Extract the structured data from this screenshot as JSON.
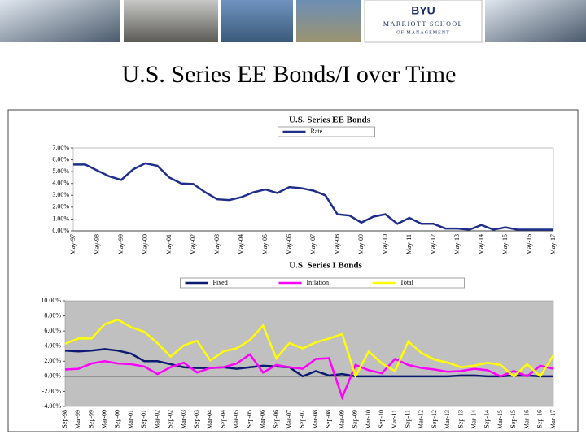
{
  "header": {
    "logo": "BYU",
    "school": "MARRIOTT SCHOOL",
    "sub": "OF MANAGEMENT"
  },
  "slide_title": "U.S. Series EE Bonds/I over Time",
  "chart_data": [
    {
      "type": "line",
      "title": "U.S. Series EE Bonds",
      "legend": "top",
      "grid": false,
      "background": "#ffffff",
      "categories": [
        "May-97",
        null,
        "May-98",
        null,
        "May-99",
        null,
        "May-00",
        null,
        "May-01",
        null,
        "May-02",
        null,
        "May-03",
        null,
        "May-04",
        null,
        "May-05",
        null,
        "May-06",
        null,
        "May-07",
        null,
        "May-08",
        null,
        "May-09",
        null,
        "May-10",
        null,
        "May-11",
        null,
        "May-12",
        null,
        "May-13",
        null,
        "May-14",
        null,
        "May-15",
        null,
        "May-16",
        null,
        "May-17"
      ],
      "series": [
        {
          "name": "Rate",
          "color": "#1f2e8a",
          "values": [
            5.6,
            5.6,
            5.1,
            4.6,
            4.3,
            5.2,
            5.7,
            5.5,
            4.5,
            4.0,
            3.96,
            3.25,
            2.66,
            2.6,
            2.84,
            3.25,
            3.5,
            3.2,
            3.7,
            3.6,
            3.4,
            3.0,
            1.4,
            1.3,
            0.7,
            1.2,
            1.4,
            0.6,
            1.1,
            0.6,
            0.6,
            0.2,
            0.2,
            0.1,
            0.5,
            0.1,
            0.3,
            0.1,
            0.1,
            0.1,
            0.1
          ]
        }
      ],
      "ylim": [
        0,
        7
      ],
      "yticks": [
        {
          "value": 0,
          "label": "0.00%"
        },
        {
          "value": 1,
          "label": "1.00%"
        },
        {
          "value": 2,
          "label": "2.00%"
        },
        {
          "value": 3,
          "label": "3.00%"
        },
        {
          "value": 4,
          "label": "4.00%"
        },
        {
          "value": 5,
          "label": "5.00%"
        },
        {
          "value": 6,
          "label": "6.00%"
        },
        {
          "value": 7,
          "label": "7.00%"
        }
      ]
    },
    {
      "type": "line",
      "title": "U.S. Series I Bonds",
      "legend": "top",
      "grid": false,
      "background": "#c0c0c0",
      "categories": [
        "Sep-98",
        "Mar-99",
        "Sep-99",
        "Mar-00",
        "Sep-00",
        "Mar-01",
        "Sep-01",
        "Mar-02",
        "Sep-02",
        "Mar-03",
        "Sep-03",
        "Mar-04",
        "Sep-04",
        "Mar-05",
        "Sep-05",
        "Mar-06",
        "Sep-06",
        "Mar-07",
        "Sep-07",
        "Mar-08",
        "Sep-08",
        "Mar-09",
        "Sep-09",
        "Mar-10",
        "Sep-10",
        "Mar-11",
        "Sep-11",
        "Mar-12",
        "Sep-12",
        "Mar-13",
        "Sep-13",
        "Mar-14",
        "Sep-14",
        "Mar-15",
        "Sep-15",
        "Mar-16",
        "Sep-16",
        "Mar-17"
      ],
      "series": [
        {
          "name": "Fixed",
          "color": "#0a1a70",
          "values": [
            3.4,
            3.3,
            3.4,
            3.6,
            3.4,
            3.0,
            2.0,
            2.0,
            1.6,
            1.2,
            1.1,
            1.1,
            1.2,
            1.0,
            1.2,
            1.4,
            1.3,
            1.2,
            0.0,
            0.7,
            0.1,
            0.3,
            0,
            0,
            0,
            0,
            0,
            0,
            0,
            0,
            0.1,
            0.1,
            0,
            0,
            0.1,
            0.1,
            0,
            0
          ]
        },
        {
          "name": "Inflation",
          "color": "#ff00ff",
          "values": [
            0.9,
            1.0,
            1.7,
            2.0,
            1.7,
            1.6,
            1.3,
            0.3,
            1.2,
            1.8,
            0.5,
            1.1,
            1.2,
            1.7,
            2.9,
            0.5,
            1.5,
            1.2,
            1.0,
            2.3,
            2.4,
            -2.8,
            1.5,
            0.8,
            0.4,
            2.3,
            1.5,
            1.1,
            0.9,
            0.6,
            0.7,
            1.0,
            0.8,
            0.0,
            0.7,
            0.0,
            1.4,
            1.0
          ]
        },
        {
          "name": "Total",
          "color": "#ffff00",
          "values": [
            4.3,
            5.0,
            5.0,
            6.9,
            7.5,
            6.5,
            5.9,
            4.4,
            2.6,
            4.1,
            4.7,
            2.1,
            3.3,
            3.7,
            4.8,
            6.7,
            2.4,
            4.4,
            3.7,
            4.5,
            5.0,
            5.6,
            0.0,
            3.3,
            1.7,
            0.7,
            4.6,
            3.1,
            2.2,
            1.8,
            1.2,
            1.4,
            1.8,
            1.5,
            0.0,
            1.6,
            0.0,
            2.8
          ]
        }
      ],
      "ylim": [
        -4,
        10
      ],
      "yticks": [
        {
          "value": -4,
          "label": "-4.00%"
        },
        {
          "value": -2,
          "label": "-2.00%"
        },
        {
          "value": 0,
          "label": "0.00%"
        },
        {
          "value": 2,
          "label": "2.00%"
        },
        {
          "value": 4,
          "label": "4.00%"
        },
        {
          "value": 6,
          "label": "6.00%"
        },
        {
          "value": 8,
          "label": "8.00%"
        },
        {
          "value": 10,
          "label": "10.00%"
        }
      ]
    }
  ]
}
